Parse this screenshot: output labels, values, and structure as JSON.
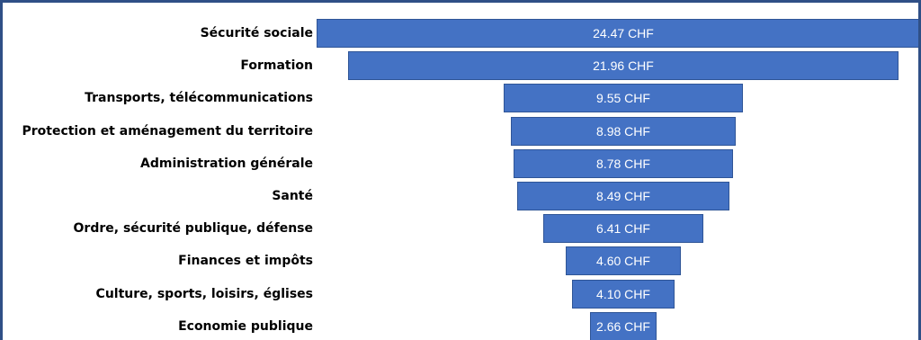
{
  "chart_data": {
    "type": "bar",
    "orientation": "horizontal-funnel",
    "categories": [
      "Sécurité sociale",
      "Formation",
      "Transports, télécommunications",
      "Protection et aménagement du territoire",
      "Administration générale",
      "Santé",
      "Ordre, sécurité publique, défense",
      "Finances et impôts",
      "Culture, sports, loisirs, églises",
      "Economie publique"
    ],
    "values": [
      24.47,
      21.96,
      9.55,
      8.98,
      8.78,
      8.49,
      6.41,
      4.6,
      4.1,
      2.66
    ],
    "data_labels": [
      "24.47 CHF",
      "21.96 CHF",
      "9.55 CHF",
      "8.98 CHF",
      "8.78 CHF",
      "8.49 CHF",
      "6.41 CHF",
      "4.60 CHF",
      "4.10 CHF",
      "2.66 CHF"
    ],
    "bar_color": "#4472c4",
    "bar_border_color": "#2f5597",
    "label_color": "#ffffff",
    "frame_color": "#2f4f86",
    "grid": false,
    "legend": "none"
  }
}
